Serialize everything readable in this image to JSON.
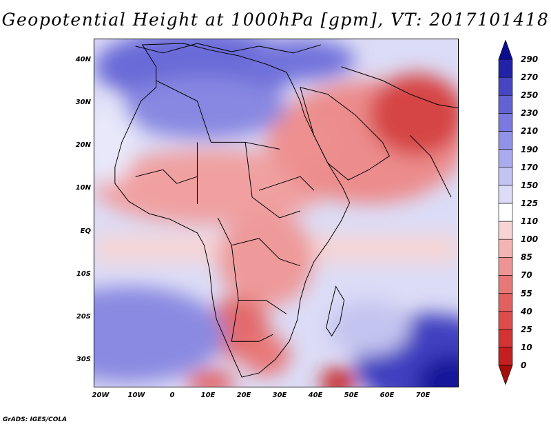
{
  "title": "Geopotential Height at 1000hPa [gpm], VT: 2017101418",
  "credit": "GrADS: IGES/COLA",
  "lat_labels": [
    "40N",
    "30N",
    "20N",
    "10N",
    "EQ",
    "10S",
    "20S",
    "30S"
  ],
  "lon_labels": [
    "20W",
    "10W",
    "0",
    "10E",
    "20E",
    "30E",
    "40E",
    "50E",
    "60E",
    "70E"
  ],
  "colorbar": {
    "levels": [
      "0",
      "10",
      "25",
      "40",
      "55",
      "70",
      "85",
      "100",
      "110",
      "125",
      "150",
      "170",
      "190",
      "210",
      "230",
      "250",
      "270",
      "290"
    ],
    "colors": [
      "#a50d0d",
      "#c41e1e",
      "#d43333",
      "#dd4b4b",
      "#e26060",
      "#e87878",
      "#ee9494",
      "#f4b4b4",
      "#f8d4d4",
      "#ffffff",
      "#dcdcf8",
      "#c4c4f4",
      "#aaaaee",
      "#9292e8",
      "#7a7ae0",
      "#6262d4",
      "#4646c4",
      "#2222a8",
      "#0c0c90"
    ]
  }
}
